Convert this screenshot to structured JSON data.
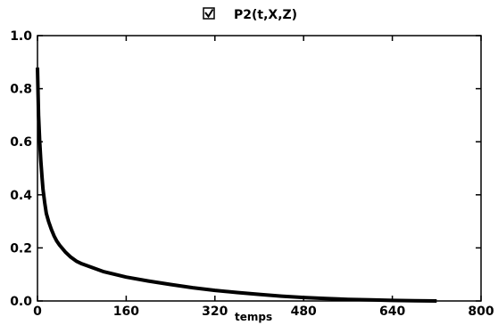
{
  "chart_data": {
    "type": "line",
    "xlabel": "temps",
    "ylabel": "",
    "xlim": [
      0,
      800
    ],
    "ylim": [
      0,
      1.0
    ],
    "x_ticks": [
      "0",
      "160",
      "320",
      "480",
      "640",
      "800"
    ],
    "y_ticks": [
      "0.0",
      "0.2",
      "0.4",
      "0.6",
      "0.8",
      "1.0"
    ],
    "legend": {
      "placement": "top-center",
      "checked": true
    },
    "grid": false,
    "line_color": "#000000",
    "series": [
      {
        "name": "P2(t,X,Z)",
        "x": [
          0,
          2,
          4,
          6,
          8,
          10,
          13,
          16,
          20,
          25,
          30,
          35,
          40,
          50,
          60,
          70,
          80,
          100,
          120,
          140,
          160,
          200,
          240,
          280,
          320,
          360,
          400,
          440,
          480,
          520,
          560,
          600,
          640,
          680,
          720
        ],
        "y": [
          0.88,
          0.7,
          0.6,
          0.53,
          0.47,
          0.42,
          0.37,
          0.33,
          0.3,
          0.27,
          0.245,
          0.225,
          0.21,
          0.185,
          0.165,
          0.15,
          0.14,
          0.125,
          0.11,
          0.1,
          0.09,
          0.075,
          0.062,
          0.05,
          0.04,
          0.032,
          0.025,
          0.018,
          0.013,
          0.009,
          0.006,
          0.004,
          0.002,
          0.001,
          0.0
        ]
      }
    ]
  }
}
